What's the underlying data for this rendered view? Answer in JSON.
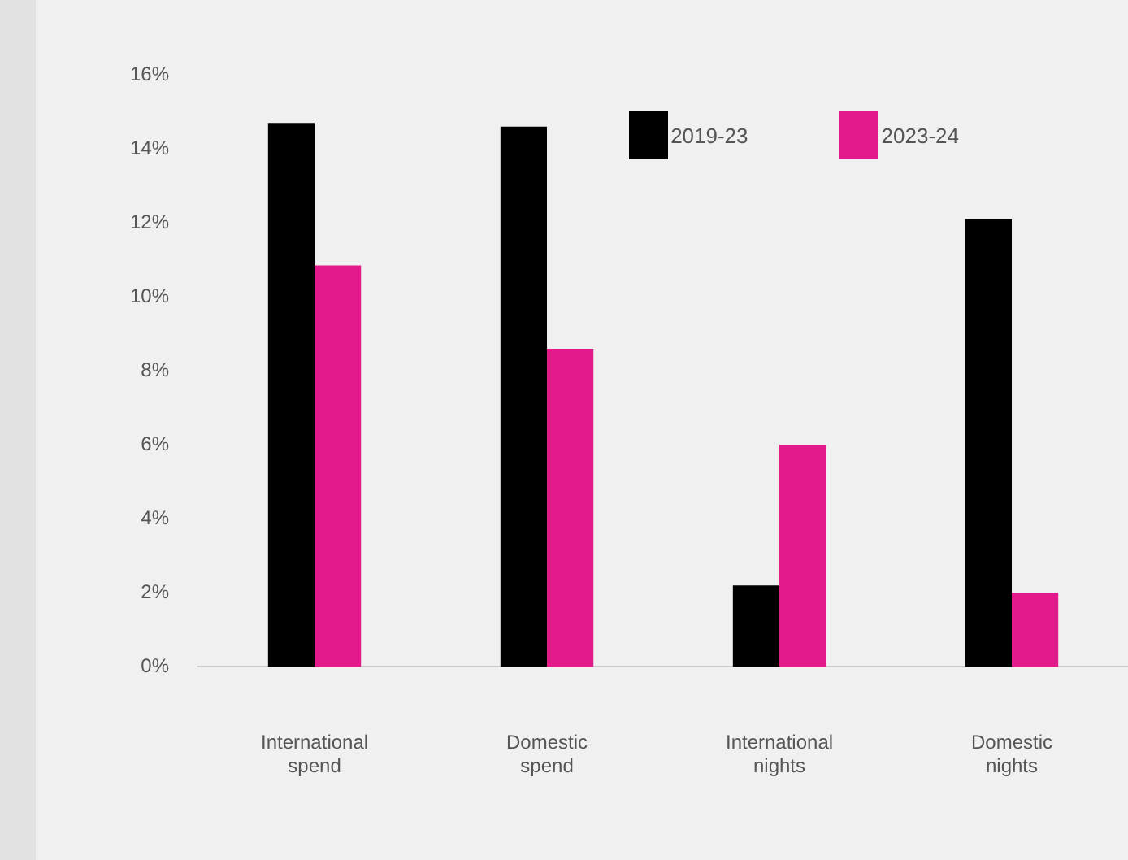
{
  "chart_data": {
    "type": "bar",
    "categories": [
      "International spend",
      "Domestic spend",
      "International nights",
      "Domestic nights"
    ],
    "series": [
      {
        "name": "2019-23",
        "color": "#000000",
        "values": [
          14.7,
          14.6,
          2.2,
          12.1
        ]
      },
      {
        "name": "2023-24",
        "color": "#e31b8a",
        "values": [
          10.85,
          8.6,
          6.0,
          2.0
        ]
      }
    ],
    "ylim": [
      0,
      16
    ],
    "yticks": [
      {
        "value": 0,
        "label": "0%"
      },
      {
        "value": 2,
        "label": "2%"
      },
      {
        "value": 4,
        "label": "4%"
      },
      {
        "value": 6,
        "label": "6%"
      },
      {
        "value": 8,
        "label": "8%"
      },
      {
        "value": 10,
        "label": "10%"
      },
      {
        "value": 12,
        "label": "12%"
      },
      {
        "value": 14,
        "label": "14%"
      },
      {
        "value": 16,
        "label": "16%"
      }
    ],
    "grid": false,
    "legend": "top right"
  }
}
